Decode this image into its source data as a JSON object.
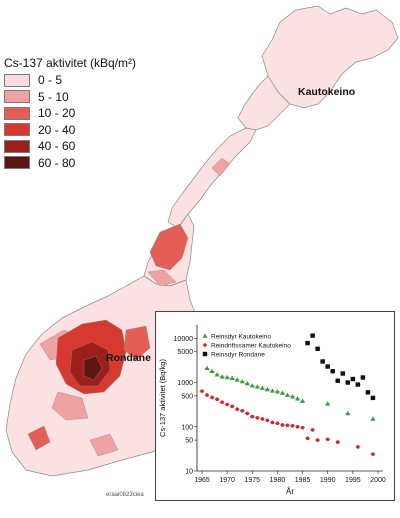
{
  "legend": {
    "title": "Cs-137 aktivitet (kBq/m²)",
    "items": [
      {
        "label": "0 - 5",
        "color": "#f9dcdc"
      },
      {
        "label": "5 - 10",
        "color": "#f0a2a2"
      },
      {
        "label": "10 - 20",
        "color": "#e45e55"
      },
      {
        "label": "20 - 40",
        "color": "#d6392f"
      },
      {
        "label": "40 - 60",
        "color": "#9c1f1a"
      },
      {
        "label": "60 - 80",
        "color": "#5e1410"
      }
    ]
  },
  "places": {
    "kautokeino": "Kautokeino",
    "rondane": "Rondane"
  },
  "credit": "eraai0823ciea",
  "chart_data": {
    "type": "scatter",
    "xlabel": "År",
    "ylabel": "Cs-137 aktivitet (Bq/kg)",
    "xlim": [
      1964,
      2001
    ],
    "ylim": [
      10,
      20000
    ],
    "yscale": "log",
    "xticks": [
      "1965",
      "1970",
      "1975",
      "1980",
      "1985",
      "1990",
      "1995",
      "2000"
    ],
    "yticks": [
      "10",
      "50",
      "100",
      "500",
      "1000",
      "5000",
      "10000"
    ],
    "legend_position": "top-left",
    "series": [
      {
        "name": "Reinsdyr Kautokeino",
        "color": "#3c9a3c",
        "marker": "triangle",
        "x": [
          1966,
          1967,
          1968,
          1969,
          1970,
          1971,
          1972,
          1973,
          1974,
          1975,
          1976,
          1977,
          1978,
          1979,
          1980,
          1981,
          1982,
          1983,
          1984,
          1985,
          1990,
          1994,
          1999
        ],
        "y": [
          2100,
          1800,
          1500,
          1350,
          1300,
          1250,
          1150,
          1050,
          950,
          850,
          800,
          750,
          700,
          650,
          620,
          580,
          520,
          480,
          430,
          380,
          330,
          200,
          150
        ]
      },
      {
        "name": "Reindriftssamer Kautokeino",
        "color": "#cc2a2a",
        "marker": "circle",
        "x": [
          1965,
          1966,
          1967,
          1968,
          1969,
          1970,
          1971,
          1972,
          1973,
          1974,
          1975,
          1976,
          1977,
          1978,
          1979,
          1980,
          1981,
          1982,
          1983,
          1984,
          1985,
          1986,
          1987,
          1988,
          1990,
          1992,
          1996,
          1999
        ],
        "y": [
          640,
          520,
          460,
          420,
          360,
          320,
          290,
          250,
          230,
          200,
          170,
          160,
          150,
          140,
          125,
          120,
          110,
          108,
          105,
          100,
          95,
          55,
          85,
          50,
          52,
          45,
          35,
          24
        ]
      },
      {
        "name": "Reinsdyr Rondane",
        "color": "#111111",
        "marker": "square",
        "x": [
          1986,
          1987,
          1988,
          1989,
          1990,
          1991,
          1992,
          1993,
          1994,
          1995,
          1996,
          1997,
          1998,
          1999
        ],
        "y": [
          7800,
          11500,
          5800,
          3000,
          2300,
          1800,
          1100,
          1600,
          1000,
          1200,
          900,
          1300,
          600,
          450
        ]
      }
    ]
  }
}
